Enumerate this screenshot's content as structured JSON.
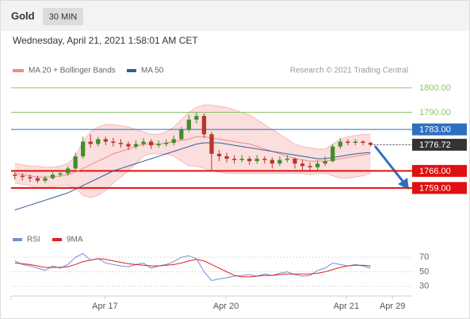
{
  "header": {
    "title": "Gold",
    "interval": "30 MIN",
    "timestamp": "Wednesday, April 21, 2021 1:58:01 AM CET",
    "credit": "Research © 2021 Trading Central"
  },
  "chart_data": [
    {
      "type": "candlestick",
      "up_color": "#3f8f2a",
      "down_color": "#b8352a",
      "open": [
        1764.5,
        1764,
        1763.5,
        1763,
        1762,
        1763,
        1764.5,
        1765,
        1767,
        1772,
        1778,
        1777,
        1779,
        1778,
        1777.5,
        1777,
        1776,
        1777,
        1778,
        1776.5,
        1777,
        1777.5,
        1779,
        1783,
        1787,
        1788.5,
        1781,
        1773,
        1772,
        1771,
        1770.5,
        1771,
        1770,
        1771,
        1770.5,
        1769,
        1770.5,
        1771,
        1769,
        1768,
        1767.5,
        1769,
        1770,
        1776,
        1778,
        1777.5,
        1778,
        1777.5
      ],
      "high": [
        1765.5,
        1765,
        1764.5,
        1764,
        1764,
        1765.5,
        1766,
        1768,
        1773.5,
        1780,
        1781,
        1780,
        1780,
        1779.5,
        1779,
        1778,
        1778.5,
        1779.5,
        1779,
        1778.5,
        1779,
        1780.5,
        1784,
        1789,
        1790,
        1789.5,
        1782,
        1774.5,
        1773.5,
        1772.5,
        1772.5,
        1772,
        1772.5,
        1772,
        1771.5,
        1772,
        1772.5,
        1771.5,
        1770.5,
        1769.5,
        1770.5,
        1772,
        1777,
        1779.5,
        1779,
        1779,
        1778.5,
        1778
      ],
      "low": [
        1762.5,
        1762,
        1761.5,
        1761,
        1761,
        1762.5,
        1763.5,
        1764,
        1766.5,
        1771,
        1775.5,
        1776,
        1776.5,
        1776,
        1775.5,
        1774.5,
        1775,
        1776,
        1775,
        1775.5,
        1776,
        1776.5,
        1778.5,
        1782,
        1785.5,
        1779.5,
        1766,
        1770,
        1769.5,
        1769,
        1769.5,
        1768.5,
        1769,
        1769,
        1767,
        1768,
        1769.5,
        1767,
        1766,
        1765.5,
        1766,
        1768,
        1769.5,
        1775,
        1776.5,
        1776.5,
        1776.5,
        1776
      ],
      "close": [
        1764,
        1763.5,
        1763,
        1762,
        1763,
        1764.5,
        1765,
        1767,
        1772,
        1778,
        1777,
        1779,
        1778,
        1777.5,
        1777,
        1776,
        1777,
        1778,
        1776.5,
        1777,
        1777.5,
        1779,
        1783,
        1787,
        1788.5,
        1781,
        1773,
        1772,
        1771,
        1770.5,
        1771,
        1770,
        1771,
        1770.5,
        1769,
        1770.5,
        1771,
        1769,
        1768,
        1767.5,
        1769,
        1770,
        1776,
        1778,
        1777.5,
        1778,
        1777.5,
        1776.72
      ],
      "series": [
        {
          "name": "MA 20 + Bollinger Bands",
          "color": "#f08a8a",
          "values": [
            1765,
            1764.5,
            1764,
            1763.5,
            1763.5,
            1763.5,
            1764,
            1764.5,
            1765.5,
            1767,
            1768.5,
            1770,
            1771.5,
            1773,
            1774,
            1775,
            1776,
            1777,
            1777,
            1777,
            1777.5,
            1778,
            1778.5,
            1779,
            1780,
            1780,
            1779.5,
            1779,
            1778.5,
            1778,
            1777.5,
            1777,
            1776,
            1775,
            1774,
            1773,
            1772,
            1771,
            1770.5,
            1770,
            1770,
            1770,
            1770.5,
            1771,
            1771.5,
            1772,
            1772.5,
            1773
          ],
          "upper": [
            1769,
            1768.5,
            1768,
            1768,
            1767.5,
            1767.5,
            1768,
            1769,
            1772,
            1778,
            1782,
            1784,
            1785,
            1785,
            1784.5,
            1784,
            1783,
            1782,
            1781,
            1781,
            1782,
            1784,
            1787,
            1790,
            1792,
            1793,
            1793,
            1792.5,
            1792,
            1791,
            1790,
            1789,
            1787,
            1785,
            1783,
            1781,
            1779,
            1777,
            1776,
            1775.5,
            1775,
            1775,
            1777,
            1779,
            1780,
            1780.5,
            1781,
            1781
          ],
          "lower": [
            1761,
            1760.5,
            1760,
            1759,
            1759,
            1759.5,
            1760,
            1760,
            1759,
            1756,
            1755,
            1756,
            1758,
            1761,
            1763.5,
            1766,
            1769,
            1772,
            1773,
            1773,
            1773,
            1772,
            1770,
            1768,
            1768,
            1767,
            1766,
            1765.5,
            1765,
            1765,
            1765,
            1765,
            1765,
            1765,
            1765,
            1765,
            1765,
            1765,
            1765,
            1764.5,
            1765,
            1765,
            1764,
            1763,
            1763,
            1763.5,
            1764,
            1765
          ]
        },
        {
          "name": "MA 50",
          "color": "#2f5d9e",
          "values": [
            1750,
            1751,
            1752,
            1753,
            1754,
            1755,
            1756,
            1757,
            1758.5,
            1760,
            1761.5,
            1763,
            1764.5,
            1766,
            1767,
            1768,
            1769,
            1770,
            1771,
            1772,
            1773,
            1774,
            1775,
            1776,
            1777,
            1777.5,
            1777.5,
            1777.5,
            1777,
            1776.5,
            1776,
            1775.5,
            1775,
            1774.5,
            1774,
            1773.5,
            1773,
            1772.5,
            1772,
            1771.5,
            1771,
            1771,
            1771.5,
            1772,
            1772.5,
            1773,
            1773.3,
            1773.5
          ]
        }
      ],
      "levels": [
        {
          "value": 1800,
          "label": "1800.00",
          "color": "#8cc56a",
          "line_style": "thin",
          "label_box": false
        },
        {
          "value": 1790,
          "label": "1790.00",
          "color": "#8cc56a",
          "line_style": "thin",
          "label_box": false
        },
        {
          "value": 1783,
          "label": "1783.00",
          "color": "#2f6fc0",
          "line_style": "thin",
          "label_box": true
        },
        {
          "value": 1776.72,
          "label": "1776.72",
          "color": "#333333",
          "line_style": "dotted",
          "label_box": true
        },
        {
          "value": 1766,
          "label": "1766.00",
          "color": "#e01010",
          "line_style": "thick",
          "label_box": true
        },
        {
          "value": 1759,
          "label": "1759.00",
          "color": "#e01010",
          "line_style": "thick",
          "label_box": true
        }
      ],
      "xlim": [
        -0.5,
        52.5
      ],
      "ylim": [
        1745,
        1803.5
      ]
    },
    {
      "type": "line",
      "series": [
        {
          "name": "RSI",
          "color": "#6f8fdc",
          "values": [
            65,
            60,
            58,
            55,
            52,
            58,
            55,
            60,
            70,
            75,
            66,
            68,
            62,
            60,
            58,
            57,
            60,
            62,
            55,
            58,
            60,
            64,
            70,
            72,
            68,
            50,
            38,
            40,
            42,
            44,
            45,
            46,
            44,
            47,
            45,
            48,
            50,
            46,
            44,
            45,
            52,
            55,
            62,
            60,
            58,
            60,
            58,
            55
          ]
        },
        {
          "name": "9MA",
          "color": "#e02020",
          "values": [
            62,
            61,
            60,
            58,
            56,
            56,
            56,
            57,
            60,
            64,
            66,
            68,
            67,
            65,
            63,
            61,
            60,
            59,
            58,
            58,
            59,
            60,
            62,
            65,
            67,
            65,
            60,
            55,
            50,
            45,
            43,
            43,
            44,
            45,
            45,
            46,
            47,
            47,
            47,
            47,
            48,
            50,
            53,
            56,
            58,
            59,
            59,
            58
          ]
        }
      ],
      "xlim": [
        -0.5,
        52.5
      ],
      "xticks": [
        {
          "value": 11.9,
          "label": "Apr 17"
        },
        {
          "value": 27.9,
          "label": "Apr 20"
        },
        {
          "value": 43.8,
          "label": "Apr 21"
        },
        {
          "value": 49.9,
          "label": "Apr 29"
        }
      ],
      "ylim": [
        20,
        80
      ],
      "yticks": [
        70,
        50,
        30
      ]
    }
  ]
}
